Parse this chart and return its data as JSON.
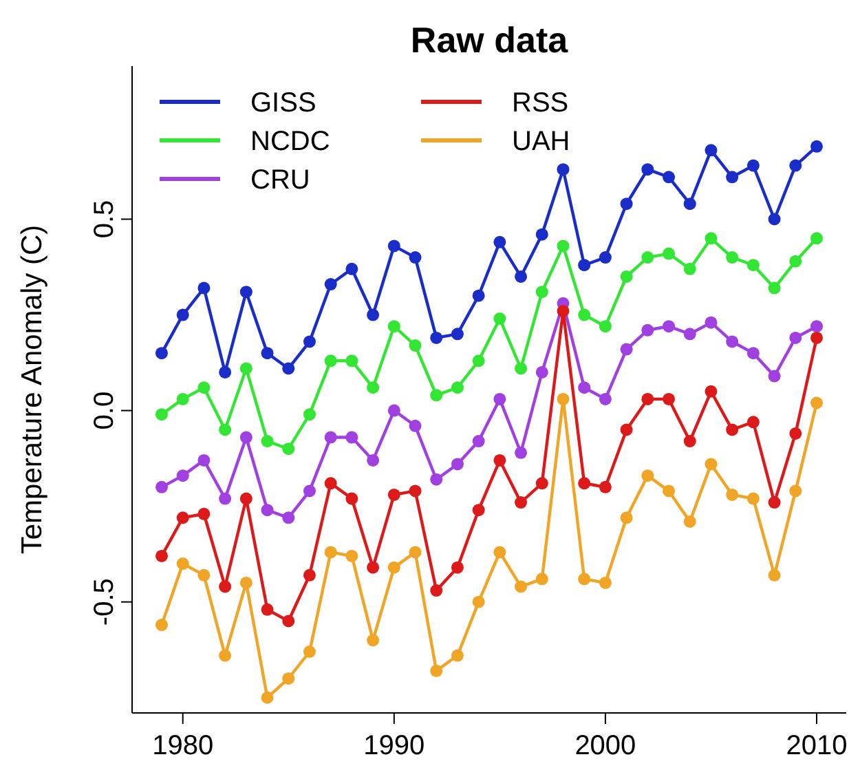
{
  "chart_data": {
    "type": "line",
    "title": "Raw data",
    "ylabel": "Temperature Anomaly (C)",
    "x": [
      1979,
      1980,
      1981,
      1982,
      1983,
      1984,
      1985,
      1986,
      1987,
      1988,
      1989,
      1990,
      1991,
      1992,
      1993,
      1994,
      1995,
      1996,
      1997,
      1998,
      1999,
      2000,
      2001,
      2002,
      2003,
      2004,
      2005,
      2006,
      2007,
      2008,
      2009,
      2010
    ],
    "series": [
      {
        "name": "GISS",
        "color": "#1a2dc8",
        "values": [
          0.15,
          0.25,
          0.32,
          0.1,
          0.31,
          0.15,
          0.11,
          0.18,
          0.33,
          0.37,
          0.25,
          0.43,
          0.4,
          0.19,
          0.2,
          0.3,
          0.44,
          0.35,
          0.46,
          0.63,
          0.38,
          0.4,
          0.54,
          0.63,
          0.61,
          0.54,
          0.68,
          0.61,
          0.64,
          0.5,
          0.64,
          0.69
        ]
      },
      {
        "name": "NCDC",
        "color": "#33e633",
        "values": [
          -0.01,
          0.03,
          0.06,
          -0.05,
          0.11,
          -0.08,
          -0.1,
          -0.01,
          0.13,
          0.13,
          0.06,
          0.22,
          0.17,
          0.04,
          0.06,
          0.13,
          0.24,
          0.11,
          0.31,
          0.43,
          0.25,
          0.22,
          0.35,
          0.4,
          0.41,
          0.37,
          0.45,
          0.4,
          0.38,
          0.32,
          0.39,
          0.45
        ]
      },
      {
        "name": "CRU",
        "color": "#a040e0",
        "values": [
          -0.2,
          -0.17,
          -0.13,
          -0.23,
          -0.07,
          -0.26,
          -0.28,
          -0.21,
          -0.07,
          -0.07,
          -0.13,
          0.0,
          -0.04,
          -0.18,
          -0.14,
          -0.08,
          0.03,
          -0.11,
          0.1,
          0.28,
          0.06,
          0.03,
          0.16,
          0.21,
          0.22,
          0.2,
          0.23,
          0.18,
          0.15,
          0.09,
          0.19,
          0.22
        ]
      },
      {
        "name": "RSS",
        "color": "#dd1a1a",
        "values": [
          -0.38,
          -0.28,
          -0.27,
          -0.46,
          -0.23,
          -0.52,
          -0.55,
          -0.43,
          -0.19,
          -0.23,
          -0.41,
          -0.22,
          -0.21,
          -0.47,
          -0.41,
          -0.26,
          -0.13,
          -0.24,
          -0.19,
          0.26,
          -0.19,
          -0.2,
          -0.05,
          0.03,
          0.03,
          -0.08,
          0.05,
          -0.05,
          -0.03,
          -0.24,
          -0.06,
          0.19
        ]
      },
      {
        "name": "UAH",
        "color": "#f0a526",
        "values": [
          -0.56,
          -0.4,
          -0.43,
          -0.64,
          -0.45,
          -0.75,
          -0.7,
          -0.63,
          -0.37,
          -0.38,
          -0.6,
          -0.41,
          -0.37,
          -0.68,
          -0.64,
          -0.5,
          -0.37,
          -0.46,
          -0.44,
          0.03,
          -0.44,
          -0.45,
          -0.28,
          -0.17,
          -0.21,
          -0.29,
          -0.14,
          -0.22,
          -0.23,
          -0.43,
          -0.21,
          0.02
        ]
      }
    ],
    "xlim": [
      1977.6,
      2011.4
    ],
    "xticks": [
      1980,
      1990,
      2000,
      2010
    ],
    "ylim": [
      -0.79,
      0.9
    ],
    "yticks": [
      -0.5,
      {
        "value": 0,
        "label": "0.0"
      },
      0.5
    ],
    "marker": "circle",
    "legend": "top left",
    "grid": false
  }
}
